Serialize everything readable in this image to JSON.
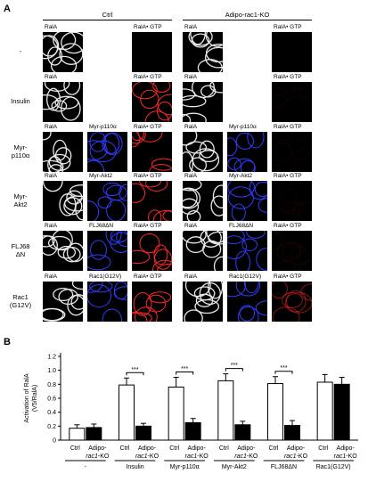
{
  "panel_a": {
    "letter": "A",
    "groups": [
      "Ctrl",
      "Adipo-rac1-KO"
    ],
    "rows": [
      {
        "label": "-",
        "labels": [
          "RalA",
          "",
          "RalA• GTP"
        ],
        "kinds": [
          "w",
          "",
          "none"
        ]
      },
      {
        "label": "Insulin",
        "labels": [
          "RalA",
          "",
          "RalA• GTP"
        ],
        "kinds": [
          "w",
          "",
          "r"
        ]
      },
      {
        "label": "Myr-\np110α",
        "labels": [
          "RalA",
          "Myr-p110α",
          "RalA• GTP"
        ],
        "kinds": [
          "w",
          "b",
          "r"
        ]
      },
      {
        "label": "Myr-\nAkt2",
        "labels": [
          "RalA",
          "Myr-Akt2",
          "RalA• GTP"
        ],
        "kinds": [
          "w",
          "b",
          "r"
        ]
      },
      {
        "label": "FLJ68\nΔN",
        "labels": [
          "RalA",
          "FLJ68ΔN",
          "RalA• GTP"
        ],
        "kinds": [
          "w",
          "b",
          "r"
        ]
      },
      {
        "label": "Rac1\n(G12V)",
        "labels": [
          "RalA",
          "Rac1(G12V)",
          "RalA• GTP"
        ],
        "kinds": [
          "w",
          "b",
          "r"
        ]
      }
    ],
    "ko_red_strength": [
      0,
      0.06,
      0.05,
      0.05,
      0.08,
      0.55
    ]
  },
  "panel_b": {
    "letter": "B",
    "chart_data": {
      "type": "bar",
      "ylabel": "Activation of RalA\n(V5/RalA)",
      "ylim": [
        0,
        1.2
      ],
      "yticks": [
        "0",
        "0.2",
        "0.4",
        "0.6",
        "0.8",
        "1.0",
        "1.2"
      ],
      "categories": [
        "-",
        "Insulin",
        "Myr-p110α",
        "Myr-Akt2",
        "FLJ68ΔN",
        "Rac1(G12V)"
      ],
      "bar_labels": [
        "Ctrl",
        "Adipo-\nrac1-KO"
      ],
      "series": [
        {
          "name": "Ctrl",
          "values": [
            0.17,
            0.79,
            0.76,
            0.85,
            0.81,
            0.83
          ],
          "errors": [
            0.05,
            0.1,
            0.14,
            0.1,
            0.1,
            0.11
          ],
          "color": "#ffffff"
        },
        {
          "name": "Adipo-rac1-KO",
          "values": [
            0.18,
            0.2,
            0.25,
            0.22,
            0.21,
            0.8
          ],
          "errors": [
            0.05,
            0.04,
            0.06,
            0.05,
            0.07,
            0.1
          ],
          "color": "#000000"
        }
      ],
      "significance": [
        "",
        "***",
        "***",
        "***",
        "***",
        ""
      ]
    }
  }
}
